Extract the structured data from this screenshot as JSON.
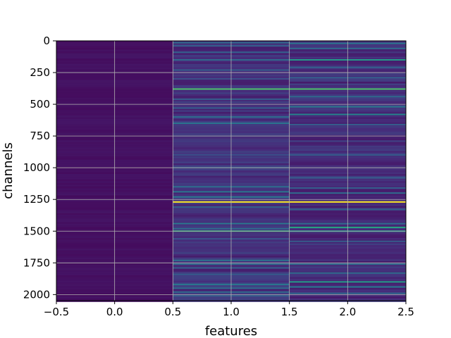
{
  "chart_data": {
    "type": "heatmap",
    "title": "",
    "xlabel": "features",
    "ylabel": "channels",
    "xlim": [
      -0.5,
      2.5
    ],
    "ylim": [
      2048,
      0
    ],
    "y_inverted": true,
    "grid": true,
    "colormap": "viridis",
    "x_ticks": [
      -0.5,
      0.0,
      0.5,
      1.0,
      1.5,
      2.0,
      2.5
    ],
    "x_tick_labels": [
      "−0.5",
      "0.0",
      "0.5",
      "1.0",
      "1.5",
      "2.0",
      "2.5"
    ],
    "y_ticks": [
      0,
      250,
      500,
      750,
      1000,
      1250,
      1500,
      1750,
      2000
    ],
    "y_tick_labels": [
      "0",
      "250",
      "500",
      "750",
      "1000",
      "1250",
      "1500",
      "1750",
      "2000"
    ],
    "columns": [
      {
        "feature": 0,
        "base_level": 0.03,
        "highlights": []
      },
      {
        "feature": 1,
        "base_level": 0.08,
        "highlights": [
          {
            "channel": 15,
            "value": 0.35
          },
          {
            "channel": 40,
            "value": 0.3
          },
          {
            "channel": 90,
            "value": 0.3
          },
          {
            "channel": 150,
            "value": 0.35
          },
          {
            "channel": 230,
            "value": 0.3
          },
          {
            "channel": 300,
            "value": 0.25
          },
          {
            "channel": 380,
            "value": 0.72
          },
          {
            "channel": 460,
            "value": 0.3
          },
          {
            "channel": 530,
            "value": 0.3
          },
          {
            "channel": 600,
            "value": 0.35
          },
          {
            "channel": 650,
            "value": 0.4
          },
          {
            "channel": 900,
            "value": 0.25
          },
          {
            "channel": 1000,
            "value": 0.3
          },
          {
            "channel": 1150,
            "value": 0.35
          },
          {
            "channel": 1190,
            "value": 0.4
          },
          {
            "channel": 1230,
            "value": 0.4
          },
          {
            "channel": 1270,
            "value": 1.0
          },
          {
            "channel": 1310,
            "value": 0.3
          },
          {
            "channel": 1440,
            "value": 0.4
          },
          {
            "channel": 1480,
            "value": 0.35
          },
          {
            "channel": 1500,
            "value": 0.65
          },
          {
            "channel": 1560,
            "value": 0.25
          },
          {
            "channel": 1730,
            "value": 0.4
          },
          {
            "channel": 1760,
            "value": 0.35
          },
          {
            "channel": 1790,
            "value": 0.3
          },
          {
            "channel": 1840,
            "value": 0.3
          },
          {
            "channel": 1920,
            "value": 0.4
          },
          {
            "channel": 1950,
            "value": 0.35
          },
          {
            "channel": 1980,
            "value": 0.35
          },
          {
            "channel": 2010,
            "value": 0.3
          }
        ]
      },
      {
        "feature": 2,
        "base_level": 0.07,
        "highlights": [
          {
            "channel": 20,
            "value": 0.4
          },
          {
            "channel": 60,
            "value": 0.35
          },
          {
            "channel": 150,
            "value": 0.55
          },
          {
            "channel": 210,
            "value": 0.3
          },
          {
            "channel": 290,
            "value": 0.3
          },
          {
            "channel": 380,
            "value": 0.72
          },
          {
            "channel": 440,
            "value": 0.35
          },
          {
            "channel": 520,
            "value": 0.4
          },
          {
            "channel": 580,
            "value": 0.45
          },
          {
            "channel": 660,
            "value": 0.3
          },
          {
            "channel": 900,
            "value": 0.3
          },
          {
            "channel": 1080,
            "value": 0.3
          },
          {
            "channel": 1160,
            "value": 0.3
          },
          {
            "channel": 1200,
            "value": 0.35
          },
          {
            "channel": 1270,
            "value": 1.0
          },
          {
            "channel": 1330,
            "value": 0.3
          },
          {
            "channel": 1440,
            "value": 0.35
          },
          {
            "channel": 1470,
            "value": 0.6
          },
          {
            "channel": 1500,
            "value": 0.55
          },
          {
            "channel": 1580,
            "value": 0.3
          },
          {
            "channel": 1760,
            "value": 0.35
          },
          {
            "channel": 1830,
            "value": 0.35
          },
          {
            "channel": 1900,
            "value": 0.55
          },
          {
            "channel": 1940,
            "value": 0.4
          },
          {
            "channel": 1990,
            "value": 0.35
          }
        ]
      }
    ]
  }
}
